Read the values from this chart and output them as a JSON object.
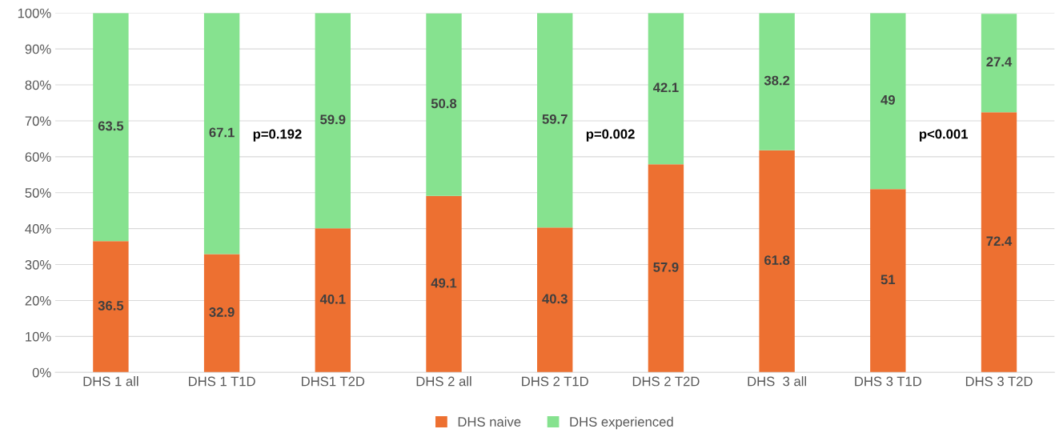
{
  "chart_data": {
    "type": "bar",
    "stacked": true,
    "categories": [
      "DHS 1 all",
      "DHS 1 T1D",
      "DHS1 T2D",
      "DHS 2 all",
      "DHS 2 T1D",
      "DHS 2 T2D",
      "DHS  3 all",
      "DHS 3 T1D",
      "DHS 3 T2D"
    ],
    "series": [
      {
        "name": "DHS naive",
        "color": "#ed7031",
        "values": [
          36.5,
          32.9,
          40.1,
          49.1,
          40.3,
          57.9,
          61.8,
          51,
          72.4
        ]
      },
      {
        "name": "DHS experienced",
        "color": "#86e28f",
        "values": [
          63.5,
          67.1,
          59.9,
          50.8,
          59.7,
          42.1,
          38.2,
          49,
          27.4
        ]
      }
    ],
    "ylim": [
      0,
      100
    ],
    "yticks": [
      {
        "value": 0,
        "label": "0%"
      },
      {
        "value": 10,
        "label": "10%"
      },
      {
        "value": 20,
        "label": "20%"
      },
      {
        "value": 30,
        "label": "30%"
      },
      {
        "value": 40,
        "label": "40%"
      },
      {
        "value": 50,
        "label": "50%"
      },
      {
        "value": 60,
        "label": "60%"
      },
      {
        "value": 70,
        "label": "70%"
      },
      {
        "value": 80,
        "label": "80%"
      },
      {
        "value": 90,
        "label": "90%"
      },
      {
        "value": 100,
        "label": "100%"
      }
    ],
    "grid": "y",
    "legend": "bottom",
    "data_labels": true,
    "annotations": [
      "p=0.192",
      "p=0.002",
      "p<0.001"
    ]
  }
}
